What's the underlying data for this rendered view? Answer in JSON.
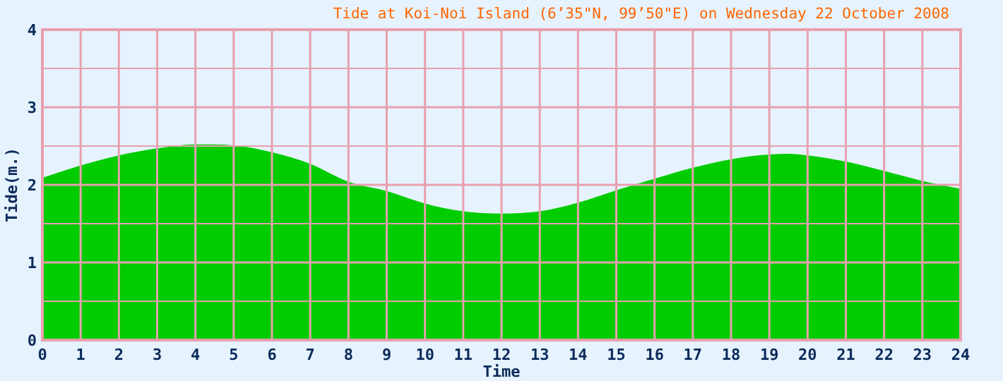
{
  "chart_data": {
    "type": "area",
    "title": "Tide at Koi-Noi Island (6’35\"N, 99’50\"E) on Wednesday 22 October 2008",
    "xlabel": "Time",
    "ylabel": "Tide(m.)",
    "x": [
      0,
      1,
      2,
      3,
      4,
      4.5,
      5,
      6,
      7,
      8,
      9,
      10,
      11,
      12,
      13,
      14,
      15,
      16,
      17,
      18,
      19,
      19.5,
      20,
      21,
      22,
      23,
      24
    ],
    "series": [
      {
        "color": "#00cc00",
        "values": [
          2.09,
          2.25,
          2.38,
          2.47,
          2.52,
          2.52,
          2.51,
          2.42,
          2.27,
          2.04,
          1.92,
          1.76,
          1.66,
          1.63,
          1.66,
          1.77,
          1.93,
          2.08,
          2.22,
          2.33,
          2.39,
          2.4,
          2.38,
          2.3,
          2.18,
          2.05,
          1.95
        ]
      }
    ],
    "xlim": [
      0,
      24
    ],
    "xticks": [
      0,
      1,
      2,
      3,
      4,
      5,
      6,
      7,
      8,
      9,
      10,
      11,
      12,
      13,
      14,
      15,
      16,
      17,
      18,
      19,
      20,
      21,
      22,
      23,
      24
    ],
    "ylim": [
      0,
      4
    ],
    "yticks": [
      0,
      {
        "value": 0.5,
        "label": null
      },
      1,
      {
        "value": 1.5,
        "label": null
      },
      2,
      {
        "value": 2.5,
        "label": null
      },
      3,
      {
        "value": 3.5,
        "label": null
      },
      4
    ],
    "grid": true
  }
}
